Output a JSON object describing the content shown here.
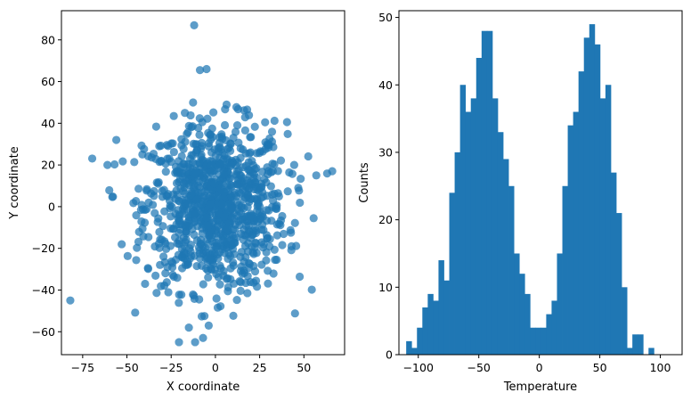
{
  "chart_data": [
    {
      "type": "scatter",
      "xlabel": "X coordinate",
      "ylabel": "Y coordinate",
      "xlim": [
        -87,
        73
      ],
      "ylim": [
        -71,
        94
      ],
      "xticks": [
        -75,
        -50,
        -25,
        0,
        25,
        50
      ],
      "yticks": [
        -60,
        -40,
        -20,
        0,
        20,
        40,
        60,
        80
      ],
      "xtick_labels": [
        "−75",
        "−50",
        "−25",
        "0",
        "25",
        "50"
      ],
      "ytick_labels": [
        "−60",
        "−40",
        "−20",
        "0",
        "20",
        "40",
        "60",
        "80"
      ],
      "marker_color": "#1f77b4",
      "point_count": 1000,
      "x_std": 20,
      "y_std": 20,
      "outliers": [
        {
          "x": -12,
          "y": 87
        },
        {
          "x": -5,
          "y": 66
        },
        {
          "x": -82,
          "y": -45
        },
        {
          "x": -7,
          "y": -63
        },
        {
          "x": 66,
          "y": 17
        },
        {
          "x": -15,
          "y": -58
        },
        {
          "x": 57,
          "y": 15
        },
        {
          "x": -56,
          "y": 32
        },
        {
          "x": -61,
          "y": 20
        }
      ]
    },
    {
      "type": "bar",
      "subtype": "histogram",
      "xlabel": "Temperature",
      "ylabel": "Counts",
      "xlim": [
        -116,
        118
      ],
      "ylim": [
        0,
        51
      ],
      "xticks": [
        -100,
        -50,
        0,
        50,
        100
      ],
      "yticks": [
        0,
        10,
        20,
        30,
        40,
        50
      ],
      "xtick_labels": [
        "−100",
        "−50",
        "0",
        "50",
        "100"
      ],
      "ytick_labels": [
        "0",
        "10",
        "20",
        "30",
        "40",
        "50"
      ],
      "bar_color": "#1f77b4",
      "bin_start": -110,
      "bin_width": 4.45,
      "counts": [
        2,
        1,
        4,
        7,
        9,
        8,
        14,
        11,
        24,
        30,
        40,
        36,
        38,
        44,
        48,
        48,
        38,
        33,
        29,
        25,
        15,
        12,
        9,
        4,
        4,
        4,
        6,
        8,
        15,
        25,
        34,
        36,
        42,
        47,
        49,
        46,
        38,
        40,
        27,
        21,
        10,
        1,
        3,
        3,
        0,
        1
      ]
    }
  ]
}
